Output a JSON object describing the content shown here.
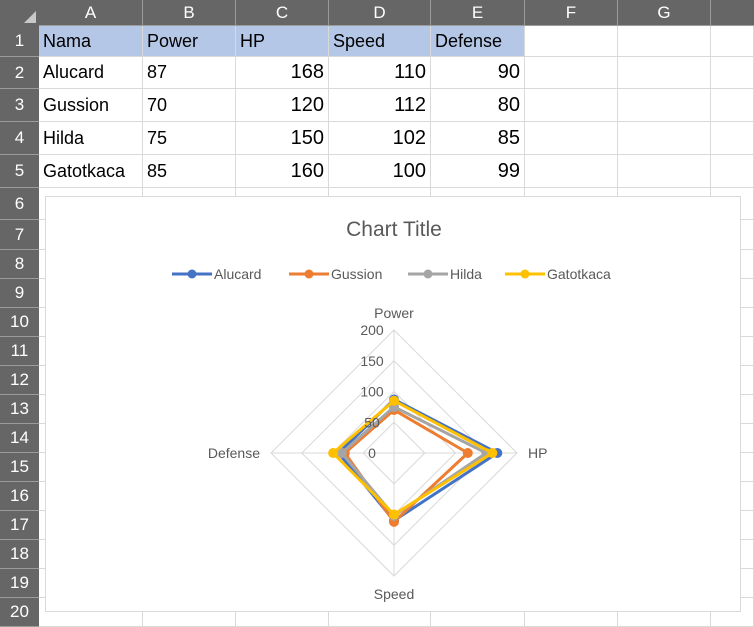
{
  "sheet": {
    "columns": [
      "A",
      "B",
      "C",
      "D",
      "E",
      "F",
      "G",
      ""
    ],
    "rows": [
      "1",
      "2",
      "3",
      "4",
      "5",
      "6",
      "7",
      "8",
      "9",
      "10",
      "11",
      "12",
      "13",
      "14",
      "15",
      "16",
      "17",
      "18",
      "19",
      "20"
    ],
    "header_row": [
      "Nama",
      "Power",
      "HP",
      "Speed",
      "Defense"
    ],
    "data_rows": [
      [
        "Alucard",
        "87",
        "168",
        "110",
        "90"
      ],
      [
        "Gussion",
        "70",
        "120",
        "112",
        "80"
      ],
      [
        "Hilda",
        "75",
        "150",
        "102",
        "85"
      ],
      [
        "Gatotkaca",
        "85",
        "160",
        "100",
        "99"
      ]
    ]
  },
  "chart_data": {
    "type": "radar",
    "title": "Chart Title",
    "categories": [
      "Power",
      "HP",
      "Speed",
      "Defense"
    ],
    "axis_ticks": [
      "0",
      "50",
      "100",
      "150",
      "200"
    ],
    "rmax": 200,
    "legend_position": "top",
    "series": [
      {
        "name": "Alucard",
        "color": "#4472c4",
        "values": [
          87,
          168,
          110,
          90
        ]
      },
      {
        "name": "Gussion",
        "color": "#ed7d31",
        "values": [
          70,
          120,
          112,
          80
        ]
      },
      {
        "name": "Hilda",
        "color": "#a5a5a5",
        "values": [
          75,
          150,
          102,
          85
        ]
      },
      {
        "name": "Gatotkaca",
        "color": "#ffc000",
        "values": [
          85,
          160,
          100,
          99
        ]
      }
    ]
  }
}
